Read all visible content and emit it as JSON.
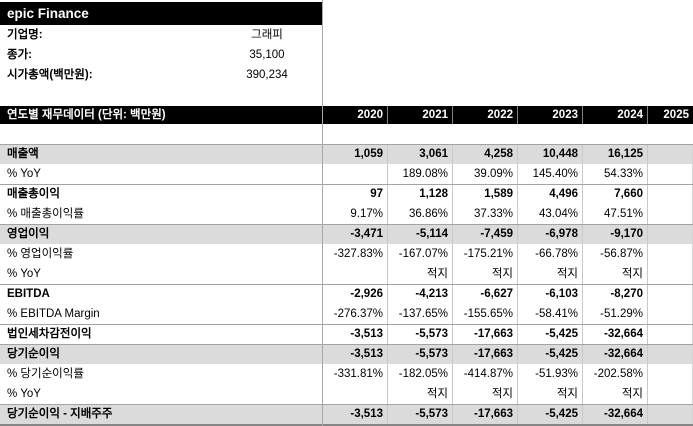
{
  "company": {
    "title": "epic Finance",
    "fields": [
      {
        "label": "기업명:",
        "value": "그래피"
      },
      {
        "label": "종가:",
        "value": "35,100"
      },
      {
        "label": "시가총액(백만원):",
        "value": "390,234"
      }
    ]
  },
  "table": {
    "header": "연도별 재무데이터 (단위: 백만원)",
    "years": [
      "2020",
      "2021",
      "2022",
      "2023",
      "2024",
      "2025"
    ],
    "rows": [
      {
        "label": "매출액",
        "style": "section shaded",
        "values": [
          "1,059",
          "3,061",
          "4,258",
          "10,448",
          "16,125",
          ""
        ]
      },
      {
        "label": "% YoY",
        "style": "plain",
        "values": [
          "",
          "189.08%",
          "39.09%",
          "145.40%",
          "54.33%",
          ""
        ]
      },
      {
        "label": "매출총이익",
        "style": "section",
        "values": [
          "97",
          "1,128",
          "1,589",
          "4,496",
          "7,660",
          ""
        ]
      },
      {
        "label": "% 매출총이익률",
        "style": "plain",
        "values": [
          "9.17%",
          "36.86%",
          "37.33%",
          "43.04%",
          "47.51%",
          ""
        ]
      },
      {
        "label": "영업이익",
        "style": "section shaded",
        "values": [
          "-3,471",
          "-5,114",
          "-7,459",
          "-6,978",
          "-9,170",
          ""
        ]
      },
      {
        "label": "% 영업이익률",
        "style": "plain",
        "values": [
          "-327.83%",
          "-167.07%",
          "-175.21%",
          "-66.78%",
          "-56.87%",
          ""
        ]
      },
      {
        "label": "% YoY",
        "style": "plain",
        "values": [
          "",
          "적지",
          "적지",
          "적지",
          "적지",
          ""
        ]
      },
      {
        "label": "EBITDA",
        "style": "section",
        "values": [
          "-2,926",
          "-4,213",
          "-6,627",
          "-6,103",
          "-8,270",
          ""
        ]
      },
      {
        "label": "% EBITDA Margin",
        "style": "plain",
        "values": [
          "-276.37%",
          "-137.65%",
          "-155.65%",
          "-58.41%",
          "-51.29%",
          ""
        ]
      },
      {
        "label": "법인세차감전이익",
        "style": "section",
        "values": [
          "-3,513",
          "-5,573",
          "-17,663",
          "-5,425",
          "-32,664",
          ""
        ]
      },
      {
        "label": "당기순이익",
        "style": "section shaded",
        "values": [
          "-3,513",
          "-5,573",
          "-17,663",
          "-5,425",
          "-32,664",
          ""
        ]
      },
      {
        "label": "% 당기순이익률",
        "style": "plain",
        "values": [
          "-331.81%",
          "-182.05%",
          "-414.87%",
          "-51.93%",
          "-202.58%",
          ""
        ]
      },
      {
        "label": "% YoY",
        "style": "plain",
        "values": [
          "",
          "적지",
          "적지",
          "적지",
          "적지",
          ""
        ]
      },
      {
        "label": "당기순이익 - 지배주주",
        "style": "section shaded",
        "values": [
          "-3,513",
          "-5,573",
          "-17,663",
          "-5,425",
          "-32,664",
          ""
        ]
      }
    ]
  },
  "colors": {
    "header_bg": "#000000",
    "header_text": "#ffffff",
    "shaded_row": "#dbdbdb",
    "gridline": "#c9c9c9",
    "section_border": "#a3a3a3"
  }
}
